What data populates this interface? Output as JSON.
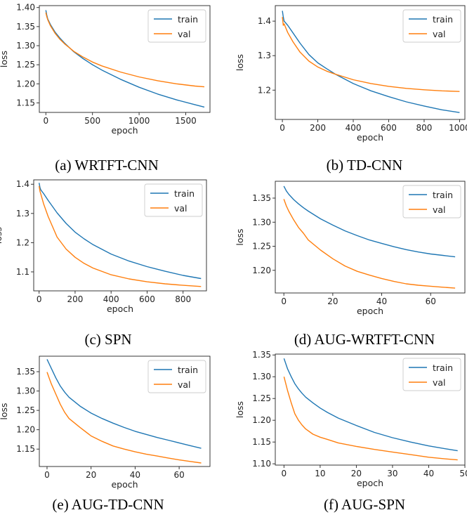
{
  "chart_data": [
    {
      "type": "line",
      "caption": "(a)  WRTFT-CNN",
      "xlabel": "epoch",
      "ylabel": "loss",
      "xlim": [
        -70,
        1760
      ],
      "ylim": [
        1.125,
        1.405
      ],
      "xticks": [
        0,
        500,
        1000,
        1500
      ],
      "yticks": [
        1.15,
        1.2,
        1.25,
        1.3,
        1.35,
        1.4
      ],
      "xtick_labels": [
        "0",
        "500",
        "1000",
        "1500"
      ],
      "ytick_labels": [
        "1.15",
        "1.20",
        "1.25",
        "1.30",
        "1.35",
        "1.40"
      ],
      "legend": "top-right",
      "series": [
        {
          "name": "train",
          "color": "#1f77b4",
          "x": [
            0,
            10,
            20,
            50,
            100,
            150,
            200,
            300,
            400,
            500,
            600,
            800,
            1000,
            1200,
            1400,
            1600,
            1700
          ],
          "y": [
            1.393,
            1.38,
            1.37,
            1.355,
            1.335,
            1.32,
            1.307,
            1.284,
            1.266,
            1.25,
            1.236,
            1.212,
            1.191,
            1.173,
            1.158,
            1.145,
            1.139
          ]
        },
        {
          "name": "val",
          "color": "#ff7f0e",
          "x": [
            0,
            10,
            20,
            50,
            100,
            150,
            200,
            300,
            400,
            500,
            600,
            800,
            1000,
            1200,
            1400,
            1600,
            1700
          ],
          "y": [
            1.387,
            1.376,
            1.368,
            1.352,
            1.332,
            1.317,
            1.305,
            1.285,
            1.27,
            1.257,
            1.247,
            1.231,
            1.218,
            1.208,
            1.2,
            1.194,
            1.192
          ]
        }
      ]
    },
    {
      "type": "line",
      "caption": "(b)  TD-CNN",
      "xlabel": "epoch",
      "ylabel": "loss",
      "xlim": [
        -40,
        1030
      ],
      "ylim": [
        1.115,
        1.445
      ],
      "xticks": [
        0,
        200,
        400,
        600,
        800,
        1000
      ],
      "yticks": [
        1.2,
        1.3,
        1.4
      ],
      "xtick_labels": [
        "0",
        "200",
        "400",
        "600",
        "800",
        "1000"
      ],
      "ytick_labels": [
        "1.2",
        "1.3",
        "1.4"
      ],
      "legend": "top-right",
      "series": [
        {
          "name": "train",
          "color": "#1f77b4",
          "x": [
            0,
            5,
            10,
            30,
            60,
            100,
            150,
            200,
            250,
            300,
            400,
            500,
            600,
            700,
            800,
            900,
            1000
          ],
          "y": [
            1.43,
            1.412,
            1.4,
            1.388,
            1.366,
            1.336,
            1.303,
            1.279,
            1.262,
            1.246,
            1.219,
            1.198,
            1.181,
            1.166,
            1.154,
            1.143,
            1.135
          ]
        },
        {
          "name": "val",
          "color": "#ff7f0e",
          "x": [
            0,
            5,
            10,
            30,
            60,
            100,
            150,
            200,
            250,
            300,
            400,
            500,
            600,
            700,
            800,
            900,
            1000
          ],
          "y": [
            1.412,
            1.388,
            1.392,
            1.367,
            1.34,
            1.31,
            1.284,
            1.267,
            1.255,
            1.246,
            1.23,
            1.219,
            1.211,
            1.205,
            1.201,
            1.198,
            1.196
          ]
        }
      ]
    },
    {
      "type": "line",
      "caption": "(c)  SPN",
      "xlabel": "epoch",
      "ylabel": "loss",
      "xlim": [
        -30,
        930
      ],
      "ylim": [
        1.035,
        1.415
      ],
      "xticks": [
        0,
        200,
        400,
        600,
        800
      ],
      "yticks": [
        1.1,
        1.2,
        1.3,
        1.4
      ],
      "xtick_labels": [
        "0",
        "200",
        "400",
        "600",
        "800"
      ],
      "ytick_labels": [
        "1.1",
        "1.2",
        "1.3",
        "1.4"
      ],
      "legend": "top-right",
      "series": [
        {
          "name": "train",
          "color": "#1f77b4",
          "x": [
            0,
            5,
            10,
            25,
            50,
            100,
            150,
            200,
            250,
            300,
            400,
            500,
            600,
            700,
            800,
            900
          ],
          "y": [
            1.405,
            1.388,
            1.38,
            1.368,
            1.345,
            1.302,
            1.266,
            1.236,
            1.213,
            1.193,
            1.161,
            1.137,
            1.118,
            1.102,
            1.088,
            1.077
          ]
        },
        {
          "name": "val",
          "color": "#ff7f0e",
          "x": [
            0,
            5,
            10,
            25,
            50,
            100,
            150,
            200,
            250,
            300,
            400,
            500,
            600,
            700,
            800,
            900
          ],
          "y": [
            1.394,
            1.375,
            1.365,
            1.333,
            1.29,
            1.219,
            1.178,
            1.15,
            1.129,
            1.113,
            1.09,
            1.076,
            1.066,
            1.059,
            1.054,
            1.05
          ]
        }
      ]
    },
    {
      "type": "line",
      "caption": "(d)  AUG-WRTFT-CNN",
      "xlabel": "epoch",
      "ylabel": "loss",
      "xlim": [
        -3.5,
        74
      ],
      "ylim": [
        1.153,
        1.385
      ],
      "xticks": [
        0,
        20,
        40,
        60
      ],
      "yticks": [
        1.2,
        1.25,
        1.3,
        1.35
      ],
      "xtick_labels": [
        "0",
        "20",
        "40",
        "60"
      ],
      "ytick_labels": [
        "1.20",
        "1.25",
        "1.30",
        "1.35"
      ],
      "legend": "top-right",
      "series": [
        {
          "name": "train",
          "color": "#1f77b4",
          "x": [
            0,
            1,
            2,
            4,
            6,
            8,
            10,
            15,
            20,
            25,
            30,
            35,
            40,
            45,
            50,
            55,
            60,
            65,
            70
          ],
          "y": [
            1.375,
            1.365,
            1.358,
            1.347,
            1.338,
            1.33,
            1.323,
            1.307,
            1.294,
            1.282,
            1.272,
            1.263,
            1.256,
            1.249,
            1.243,
            1.238,
            1.234,
            1.231,
            1.228
          ]
        },
        {
          "name": "val",
          "color": "#ff7f0e",
          "x": [
            0,
            1,
            2,
            4,
            6,
            8,
            10,
            15,
            20,
            25,
            30,
            35,
            40,
            45,
            50,
            55,
            60,
            65,
            70
          ],
          "y": [
            1.348,
            1.334,
            1.323,
            1.305,
            1.289,
            1.277,
            1.263,
            1.242,
            1.224,
            1.209,
            1.198,
            1.19,
            1.183,
            1.177,
            1.172,
            1.169,
            1.167,
            1.165,
            1.163
          ]
        }
      ]
    },
    {
      "type": "line",
      "caption": "(e)  AUG-TD-CNN",
      "xlabel": "epoch",
      "ylabel": "loss",
      "xlim": [
        -3.5,
        74
      ],
      "ylim": [
        1.105,
        1.39
      ],
      "xticks": [
        0,
        20,
        40,
        60
      ],
      "yticks": [
        1.15,
        1.2,
        1.25,
        1.3,
        1.35
      ],
      "xtick_labels": [
        "0",
        "20",
        "40",
        "60"
      ],
      "ytick_labels": [
        "1.15",
        "1.20",
        "1.25",
        "1.30",
        "1.35"
      ],
      "legend": "top-right",
      "series": [
        {
          "name": "train",
          "color": "#1f77b4",
          "x": [
            0,
            1,
            2,
            4,
            6,
            8,
            10,
            15,
            20,
            25,
            30,
            35,
            40,
            45,
            50,
            55,
            60,
            65,
            70
          ],
          "y": [
            1.382,
            1.37,
            1.358,
            1.334,
            1.313,
            1.297,
            1.284,
            1.261,
            1.243,
            1.229,
            1.217,
            1.206,
            1.196,
            1.188,
            1.18,
            1.173,
            1.166,
            1.159,
            1.152
          ]
        },
        {
          "name": "val",
          "color": "#ff7f0e",
          "x": [
            0,
            1,
            2,
            4,
            6,
            8,
            10,
            15,
            20,
            25,
            30,
            35,
            40,
            45,
            50,
            55,
            60,
            65,
            70
          ],
          "y": [
            1.349,
            1.333,
            1.318,
            1.292,
            1.266,
            1.245,
            1.229,
            1.206,
            1.184,
            1.17,
            1.158,
            1.15,
            1.143,
            1.137,
            1.132,
            1.127,
            1.122,
            1.118,
            1.114
          ]
        }
      ]
    },
    {
      "type": "line",
      "caption": "(f)  AUG-SPN",
      "xlabel": "epoch",
      "ylabel": "loss",
      "xlim": [
        -2.4,
        50
      ],
      "ylim": [
        1.097,
        1.352
      ],
      "xticks": [
        0,
        10,
        20,
        30,
        40,
        50
      ],
      "yticks": [
        1.1,
        1.15,
        1.2,
        1.25,
        1.3,
        1.35
      ],
      "xtick_labels": [
        "0",
        "10",
        "20",
        "30",
        "40",
        "50"
      ],
      "ytick_labels": [
        "1.10",
        "1.15",
        "1.20",
        "1.25",
        "1.30",
        "1.35"
      ],
      "legend": "top-right",
      "series": [
        {
          "name": "train",
          "color": "#1f77b4",
          "x": [
            0,
            1,
            2,
            3,
            4,
            5,
            6,
            8,
            10,
            12,
            15,
            20,
            25,
            30,
            35,
            40,
            45,
            48
          ],
          "y": [
            1.342,
            1.318,
            1.3,
            1.284,
            1.272,
            1.262,
            1.253,
            1.24,
            1.228,
            1.218,
            1.205,
            1.188,
            1.172,
            1.16,
            1.15,
            1.141,
            1.134,
            1.13
          ]
        },
        {
          "name": "val",
          "color": "#ff7f0e",
          "x": [
            0,
            1,
            2,
            3,
            4,
            5,
            6,
            8,
            10,
            12,
            15,
            20,
            25,
            30,
            35,
            40,
            45,
            48
          ],
          "y": [
            1.3,
            1.268,
            1.24,
            1.215,
            1.2,
            1.189,
            1.18,
            1.168,
            1.161,
            1.156,
            1.148,
            1.14,
            1.133,
            1.127,
            1.121,
            1.115,
            1.111,
            1.109
          ]
        }
      ]
    }
  ]
}
